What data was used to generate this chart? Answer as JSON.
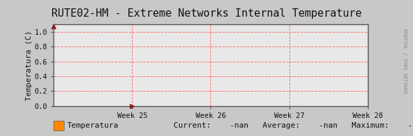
{
  "title": "RUTE02-HM - Extreme Networks Internal Temperature",
  "ylabel": "Temperatura (C)",
  "xtick_labels": [
    "Week 25",
    "Week 26",
    "Week 27",
    "Week 28"
  ],
  "ytick_values": [
    0.0,
    0.2,
    0.4,
    0.6,
    0.8,
    1.0
  ],
  "ylim": [
    0.0,
    1.1
  ],
  "xlim": [
    0,
    4
  ],
  "xtick_positions": [
    1,
    2,
    3,
    4
  ],
  "background_color": "#c8c8c8",
  "plot_bg_color": "#e8e8e8",
  "grid_color": "#ff6666",
  "border_color": "#555555",
  "title_color": "#111111",
  "axis_color": "#555555",
  "legend_label": "Temperatura",
  "legend_color": "#ff8800",
  "current_val": "-nan",
  "average_val": "-nan",
  "maximum_val": "-nan",
  "watermark": "RRDTOOL / TOBI OETIKER",
  "arrow_color": "#882222",
  "title_fontsize": 11,
  "tick_fontsize": 7.5,
  "legend_fontsize": 8,
  "ylabel_fontsize": 8
}
